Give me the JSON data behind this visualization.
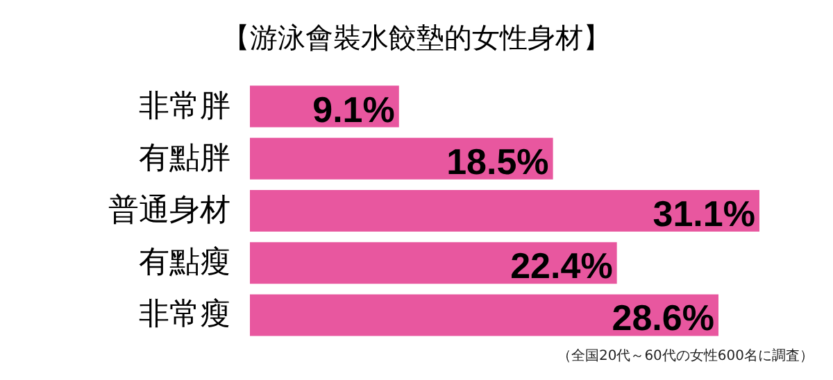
{
  "chart_data": {
    "type": "bar",
    "orientation": "horizontal",
    "title": "【游泳會裝水餃墊的女性身材】",
    "categories": [
      "非常胖",
      "有點胖",
      "普通身材",
      "有點瘦",
      "非常瘦"
    ],
    "values": [
      9.1,
      18.5,
      31.1,
      22.4,
      28.6
    ],
    "value_labels": [
      "9.1%",
      "18.5%",
      "31.1%",
      "22.4%",
      "28.6%"
    ],
    "color": "#e8579f",
    "annotations": [
      "（全国20代～60代の女性600名に調査）"
    ]
  }
}
